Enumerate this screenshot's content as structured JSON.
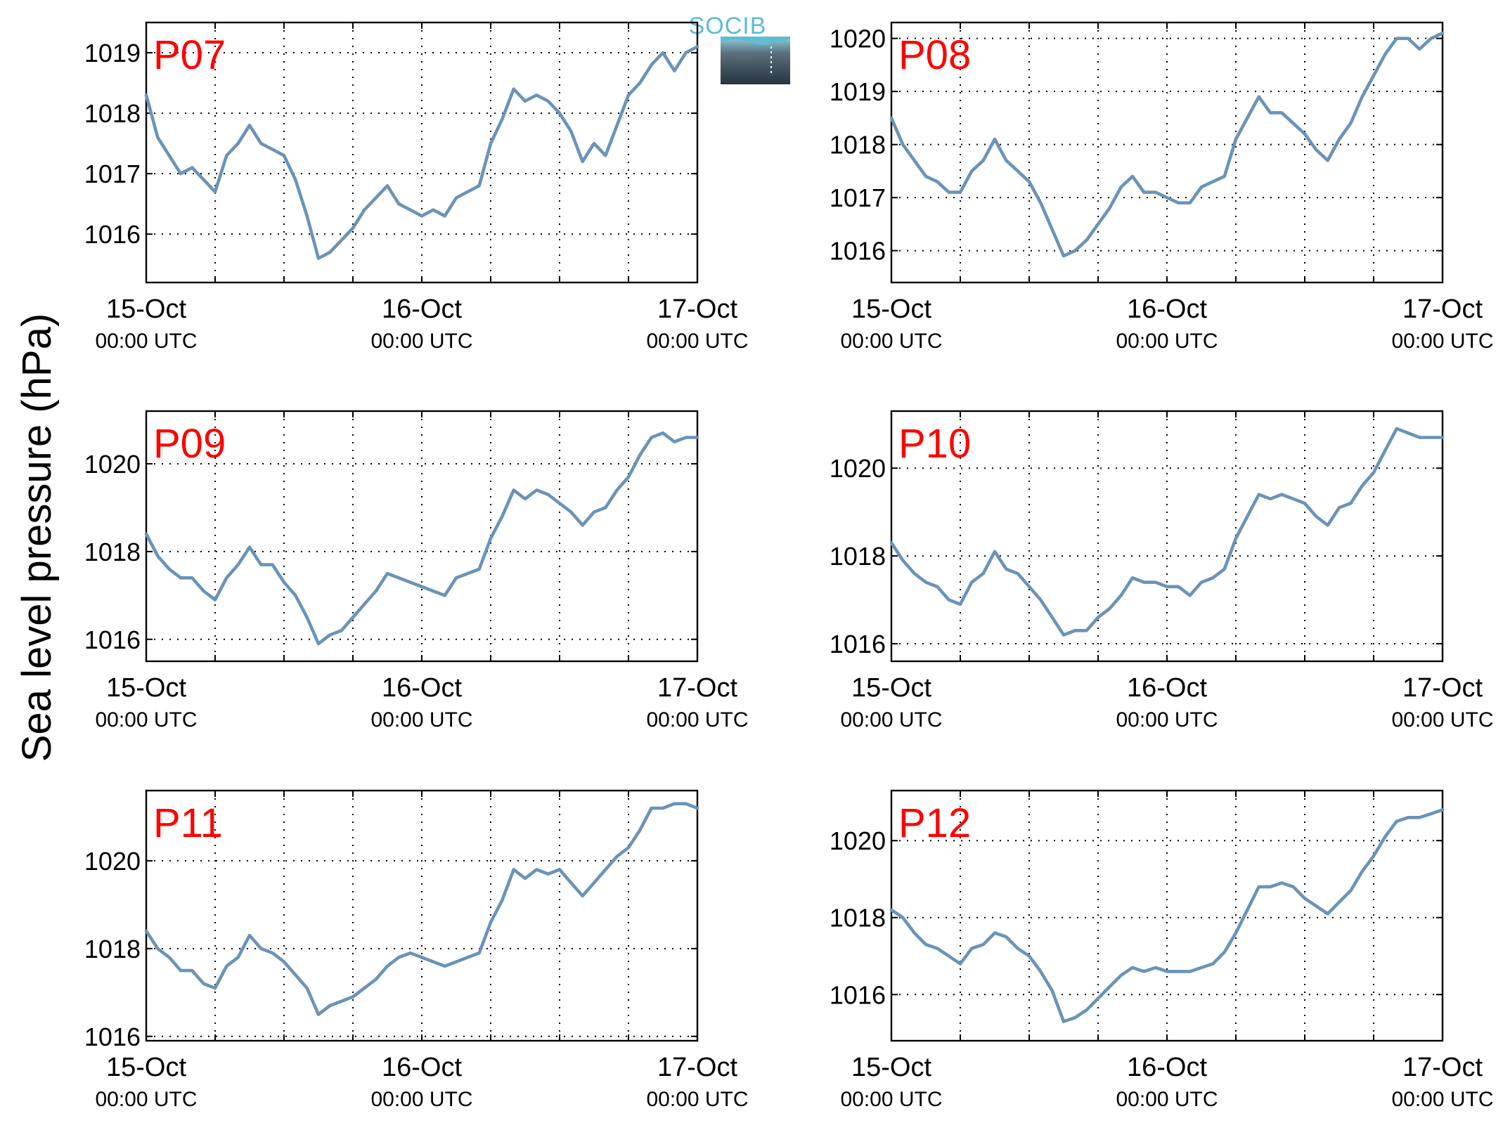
{
  "figure": {
    "ylabel": "Sea level pressure (hPa)",
    "logo_text": "SOCIB",
    "series_color": "#6b93b8",
    "tag_color": "#ff0000"
  },
  "chart_data": [
    {
      "type": "line",
      "panel": "P07",
      "xlim": [
        0,
        48
      ],
      "ylim": [
        1015.2,
        1019.5
      ],
      "yticks": [
        1016,
        1017,
        1018,
        1019
      ],
      "xticks": [
        0,
        24,
        48
      ],
      "xtick_labels": [
        "15-Oct",
        "16-Oct",
        "17-Oct"
      ],
      "xtick_sublabels": [
        "00:00 UTC",
        "00:00 UTC",
        "00:00 UTC"
      ],
      "x": [
        0,
        1,
        2,
        3,
        4,
        5,
        6,
        7,
        8,
        9,
        10,
        11,
        12,
        13,
        14,
        15,
        16,
        17,
        18,
        19,
        20,
        21,
        22,
        23,
        24,
        25,
        26,
        27,
        28,
        29,
        30,
        31,
        32,
        33,
        34,
        35,
        36,
        37,
        38,
        39,
        40,
        41,
        42,
        43,
        44,
        45,
        46,
        47,
        48
      ],
      "values": [
        1018.3,
        1017.6,
        1017.3,
        1017.0,
        1017.1,
        1016.9,
        1016.7,
        1017.3,
        1017.5,
        1017.8,
        1017.5,
        1017.4,
        1017.3,
        1016.9,
        1016.3,
        1015.6,
        1015.7,
        1015.9,
        1016.1,
        1016.4,
        1016.6,
        1016.8,
        1016.5,
        1016.4,
        1016.3,
        1016.4,
        1016.3,
        1016.6,
        1016.7,
        1016.8,
        1017.5,
        1017.9,
        1018.4,
        1018.2,
        1018.3,
        1018.2,
        1018.0,
        1017.7,
        1017.2,
        1017.5,
        1017.3,
        1017.8,
        1018.3,
        1018.5,
        1018.8,
        1019.0,
        1018.7,
        1019.0,
        1019.1
      ]
    },
    {
      "type": "line",
      "panel": "P08",
      "xlim": [
        0,
        48
      ],
      "ylim": [
        1015.4,
        1020.3
      ],
      "yticks": [
        1016,
        1017,
        1018,
        1019,
        1020
      ],
      "xticks": [
        0,
        24,
        48
      ],
      "xtick_labels": [
        "15-Oct",
        "16-Oct",
        "17-Oct"
      ],
      "xtick_sublabels": [
        "00:00 UTC",
        "00:00 UTC",
        "00:00 UTC"
      ],
      "x": [
        0,
        1,
        2,
        3,
        4,
        5,
        6,
        7,
        8,
        9,
        10,
        11,
        12,
        13,
        14,
        15,
        16,
        17,
        18,
        19,
        20,
        21,
        22,
        23,
        24,
        25,
        26,
        27,
        28,
        29,
        30,
        31,
        32,
        33,
        34,
        35,
        36,
        37,
        38,
        39,
        40,
        41,
        42,
        43,
        44,
        45,
        46,
        47,
        48
      ],
      "values": [
        1018.5,
        1018.0,
        1017.7,
        1017.4,
        1017.3,
        1017.1,
        1017.1,
        1017.5,
        1017.7,
        1018.1,
        1017.7,
        1017.5,
        1017.3,
        1016.9,
        1016.4,
        1015.9,
        1016.0,
        1016.2,
        1016.5,
        1016.8,
        1017.2,
        1017.4,
        1017.1,
        1017.1,
        1017.0,
        1016.9,
        1016.9,
        1017.2,
        1017.3,
        1017.4,
        1018.1,
        1018.5,
        1018.9,
        1018.6,
        1018.6,
        1018.4,
        1018.2,
        1017.9,
        1017.7,
        1018.1,
        1018.4,
        1018.9,
        1019.3,
        1019.7,
        1020.0,
        1020.0,
        1019.8,
        1020.0,
        1020.1
      ]
    },
    {
      "type": "line",
      "panel": "P09",
      "xlim": [
        0,
        48
      ],
      "ylim": [
        1015.5,
        1021.2
      ],
      "yticks": [
        1016,
        1018,
        1020
      ],
      "xticks": [
        0,
        24,
        48
      ],
      "xtick_labels": [
        "15-Oct",
        "16-Oct",
        "17-Oct"
      ],
      "xtick_sublabels": [
        "00:00 UTC",
        "00:00 UTC",
        "00:00 UTC"
      ],
      "x": [
        0,
        1,
        2,
        3,
        4,
        5,
        6,
        7,
        8,
        9,
        10,
        11,
        12,
        13,
        14,
        15,
        16,
        17,
        18,
        19,
        20,
        21,
        22,
        23,
        24,
        25,
        26,
        27,
        28,
        29,
        30,
        31,
        32,
        33,
        34,
        35,
        36,
        37,
        38,
        39,
        40,
        41,
        42,
        43,
        44,
        45,
        46,
        47,
        48
      ],
      "values": [
        1018.4,
        1017.9,
        1017.6,
        1017.4,
        1017.4,
        1017.1,
        1016.9,
        1017.4,
        1017.7,
        1018.1,
        1017.7,
        1017.7,
        1017.3,
        1017.0,
        1016.5,
        1015.9,
        1016.1,
        1016.2,
        1016.5,
        1016.8,
        1017.1,
        1017.5,
        1017.4,
        1017.3,
        1017.2,
        1017.1,
        1017.0,
        1017.4,
        1017.5,
        1017.6,
        1018.3,
        1018.8,
        1019.4,
        1019.2,
        1019.4,
        1019.3,
        1019.1,
        1018.9,
        1018.6,
        1018.9,
        1019.0,
        1019.4,
        1019.7,
        1020.2,
        1020.6,
        1020.7,
        1020.5,
        1020.6,
        1020.6
      ]
    },
    {
      "type": "line",
      "panel": "P10",
      "xlim": [
        0,
        48
      ],
      "ylim": [
        1015.6,
        1021.3
      ],
      "yticks": [
        1016,
        1018,
        1020
      ],
      "xticks": [
        0,
        24,
        48
      ],
      "xtick_labels": [
        "15-Oct",
        "16-Oct",
        "17-Oct"
      ],
      "xtick_sublabels": [
        "00:00 UTC",
        "00:00 UTC",
        "00:00 UTC"
      ],
      "x": [
        0,
        1,
        2,
        3,
        4,
        5,
        6,
        7,
        8,
        9,
        10,
        11,
        12,
        13,
        14,
        15,
        16,
        17,
        18,
        19,
        20,
        21,
        22,
        23,
        24,
        25,
        26,
        27,
        28,
        29,
        30,
        31,
        32,
        33,
        34,
        35,
        36,
        37,
        38,
        39,
        40,
        41,
        42,
        43,
        44,
        45,
        46,
        47,
        48
      ],
      "values": [
        1018.3,
        1017.9,
        1017.6,
        1017.4,
        1017.3,
        1017.0,
        1016.9,
        1017.4,
        1017.6,
        1018.1,
        1017.7,
        1017.6,
        1017.3,
        1017.0,
        1016.6,
        1016.2,
        1016.3,
        1016.3,
        1016.6,
        1016.8,
        1017.1,
        1017.5,
        1017.4,
        1017.4,
        1017.3,
        1017.3,
        1017.1,
        1017.4,
        1017.5,
        1017.7,
        1018.4,
        1018.9,
        1019.4,
        1019.3,
        1019.4,
        1019.3,
        1019.2,
        1018.9,
        1018.7,
        1019.1,
        1019.2,
        1019.6,
        1019.9,
        1020.4,
        1020.9,
        1020.8,
        1020.7,
        1020.7,
        1020.7
      ]
    },
    {
      "type": "line",
      "panel": "P11",
      "xlim": [
        0,
        48
      ],
      "ylim": [
        1015.9,
        1021.6
      ],
      "yticks": [
        1016,
        1018,
        1020
      ],
      "xticks": [
        0,
        24,
        48
      ],
      "xtick_labels": [
        "15-Oct",
        "16-Oct",
        "17-Oct"
      ],
      "xtick_sublabels": [
        "00:00 UTC",
        "00:00 UTC",
        "00:00 UTC"
      ],
      "x": [
        0,
        1,
        2,
        3,
        4,
        5,
        6,
        7,
        8,
        9,
        10,
        11,
        12,
        13,
        14,
        15,
        16,
        17,
        18,
        19,
        20,
        21,
        22,
        23,
        24,
        25,
        26,
        27,
        28,
        29,
        30,
        31,
        32,
        33,
        34,
        35,
        36,
        37,
        38,
        39,
        40,
        41,
        42,
        43,
        44,
        45,
        46,
        47,
        48
      ],
      "values": [
        1018.4,
        1018.0,
        1017.8,
        1017.5,
        1017.5,
        1017.2,
        1017.1,
        1017.6,
        1017.8,
        1018.3,
        1018.0,
        1017.9,
        1017.7,
        1017.4,
        1017.1,
        1016.5,
        1016.7,
        1016.8,
        1016.9,
        1017.1,
        1017.3,
        1017.6,
        1017.8,
        1017.9,
        1017.8,
        1017.7,
        1017.6,
        1017.7,
        1017.8,
        1017.9,
        1018.6,
        1019.1,
        1019.8,
        1019.6,
        1019.8,
        1019.7,
        1019.8,
        1019.5,
        1019.2,
        1019.5,
        1019.8,
        1020.1,
        1020.3,
        1020.7,
        1021.2,
        1021.2,
        1021.3,
        1021.3,
        1021.2
      ]
    },
    {
      "type": "line",
      "panel": "P12",
      "xlim": [
        0,
        48
      ],
      "ylim": [
        1014.8,
        1021.3
      ],
      "yticks": [
        1016,
        1018,
        1020
      ],
      "xticks": [
        0,
        24,
        48
      ],
      "xtick_labels": [
        "15-Oct",
        "16-Oct",
        "17-Oct"
      ],
      "xtick_sublabels": [
        "00:00 UTC",
        "00:00 UTC",
        "00:00 UTC"
      ],
      "x": [
        0,
        1,
        2,
        3,
        4,
        5,
        6,
        7,
        8,
        9,
        10,
        11,
        12,
        13,
        14,
        15,
        16,
        17,
        18,
        19,
        20,
        21,
        22,
        23,
        24,
        25,
        26,
        27,
        28,
        29,
        30,
        31,
        32,
        33,
        34,
        35,
        36,
        37,
        38,
        39,
        40,
        41,
        42,
        43,
        44,
        45,
        46,
        47,
        48
      ],
      "values": [
        1018.2,
        1018.0,
        1017.6,
        1017.3,
        1017.2,
        1017.0,
        1016.8,
        1017.2,
        1017.3,
        1017.6,
        1017.5,
        1017.2,
        1017.0,
        1016.6,
        1016.1,
        1015.3,
        1015.4,
        1015.6,
        1015.9,
        1016.2,
        1016.5,
        1016.7,
        1016.6,
        1016.7,
        1016.6,
        1016.6,
        1016.6,
        1016.7,
        1016.8,
        1017.1,
        1017.6,
        1018.2,
        1018.8,
        1018.8,
        1018.9,
        1018.8,
        1018.5,
        1018.3,
        1018.1,
        1018.4,
        1018.7,
        1019.2,
        1019.6,
        1020.1,
        1020.5,
        1020.6,
        1020.6,
        1020.7,
        1020.8
      ]
    }
  ]
}
